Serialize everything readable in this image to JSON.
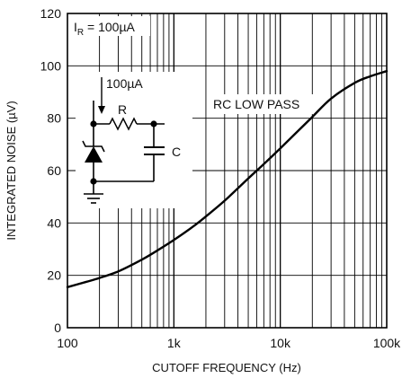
{
  "chart_data": {
    "type": "line",
    "title": "",
    "xlabel": "CUTOFF FREQUENCY (Hz)",
    "ylabel": "INTEGRATED NOISE (µV)",
    "x_scale": "log",
    "xlim": [
      100,
      100000
    ],
    "ylim": [
      0,
      120
    ],
    "x_ticks": [
      100,
      1000,
      10000,
      100000
    ],
    "x_tick_labels": [
      "100",
      "1k",
      "10k",
      "100k"
    ],
    "y_ticks": [
      0,
      20,
      40,
      60,
      80,
      100,
      120
    ],
    "y_tick_labels": [
      "0",
      "20",
      "40",
      "60",
      "80",
      "100",
      "120"
    ],
    "grid": true,
    "series": [
      {
        "name": "RC LOW PASS",
        "x": [
          100,
          150,
          200,
          300,
          500,
          700,
          1000,
          1500,
          2000,
          3000,
          5000,
          7000,
          10000,
          15000,
          20000,
          30000,
          50000,
          70000,
          100000
        ],
        "y": [
          15.5,
          17.5,
          19,
          21.5,
          26,
          29.5,
          33.5,
          38.5,
          42.5,
          48.5,
          57,
          62.5,
          68.5,
          75.5,
          80.5,
          87.5,
          93.5,
          96,
          98
        ]
      }
    ],
    "annotations": {
      "condition_label": "I",
      "condition_subscript": "R",
      "condition_value": " = 100µA",
      "current_label": "100µA",
      "resistor_label": "R",
      "capacitor_label": "C",
      "curve_label": "RC LOW PASS"
    }
  }
}
